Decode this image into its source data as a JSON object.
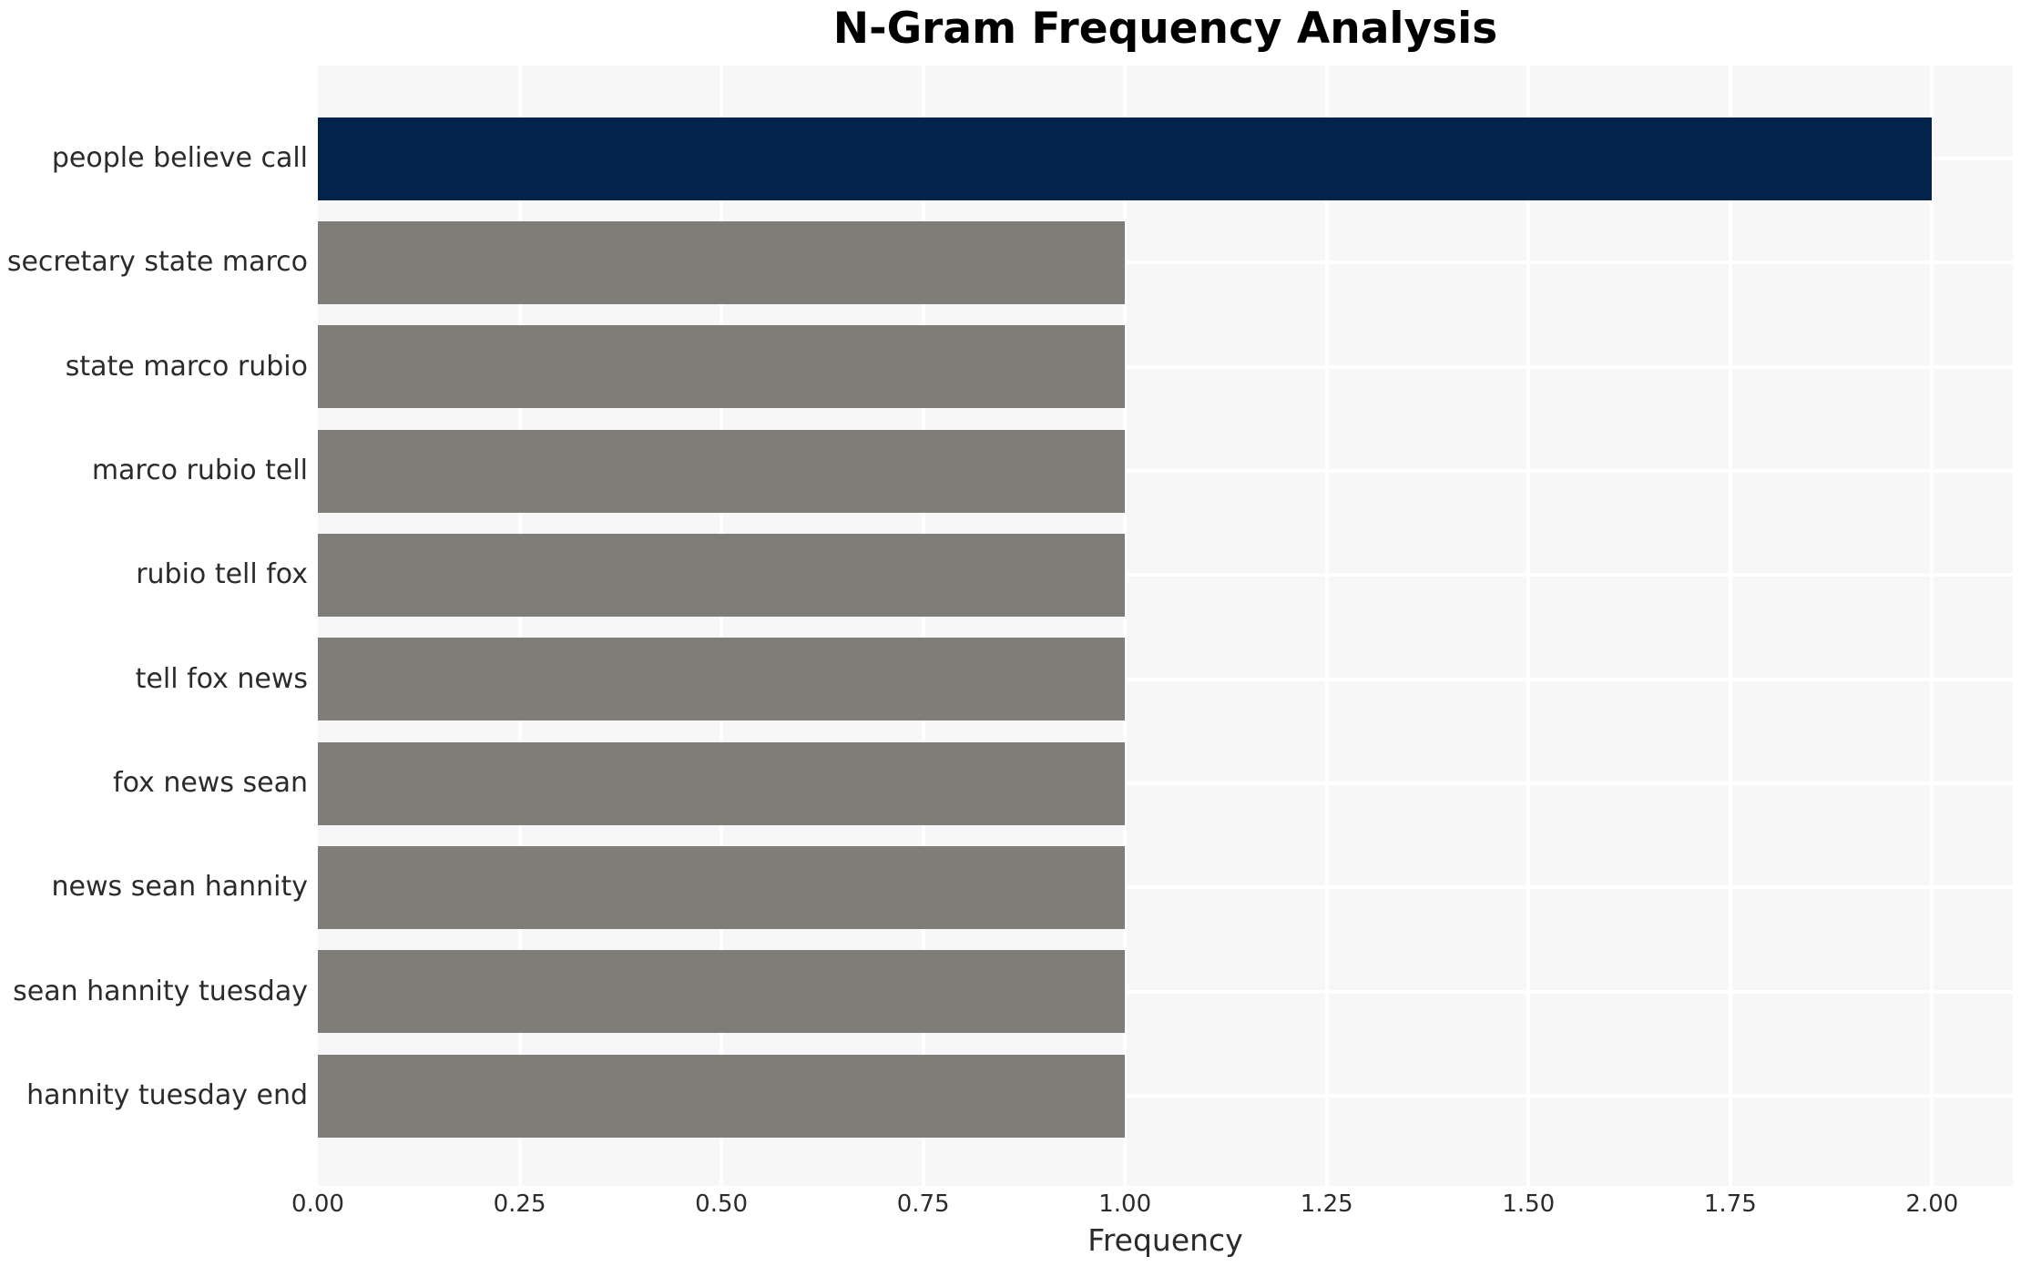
{
  "title": "N-Gram Frequency Analysis",
  "chart_data": {
    "type": "bar",
    "orientation": "horizontal",
    "title": "N-Gram Frequency Analysis",
    "xlabel": "Frequency",
    "ylabel": "",
    "categories": [
      "people believe call",
      "secretary state marco",
      "state marco rubio",
      "marco rubio tell",
      "rubio tell fox",
      "tell fox news",
      "fox news sean",
      "news sean hannity",
      "sean hannity tuesday",
      "hannity tuesday end"
    ],
    "values": [
      2,
      1,
      1,
      1,
      1,
      1,
      1,
      1,
      1,
      1
    ],
    "bar_colors": [
      "#02234c",
      "#7f7d78",
      "#7f7d78",
      "#7f7d78",
      "#7f7d78",
      "#7f7d78",
      "#7f7d78",
      "#7f7d78",
      "#7f7d78",
      "#7f7d78"
    ],
    "xlim": [
      0,
      2.1
    ],
    "xtick_values": [
      0,
      0.25,
      0.5,
      0.75,
      1.0,
      1.25,
      1.5,
      1.75,
      2.0
    ],
    "xtick_labels": [
      "0.00",
      "0.25",
      "0.50",
      "0.75",
      "1.00",
      "1.25",
      "1.50",
      "1.75",
      "2.00"
    ],
    "grid": true,
    "legend": false,
    "colors": {
      "highlight_bar": "#02234c",
      "default_bar": "#7f7d78",
      "plot_background": "#f7f7f7",
      "gridline": "#ffffff",
      "title_text": "#000000",
      "axis_text": "#2b2b2b",
      "figure_background": "#ffffff"
    }
  }
}
